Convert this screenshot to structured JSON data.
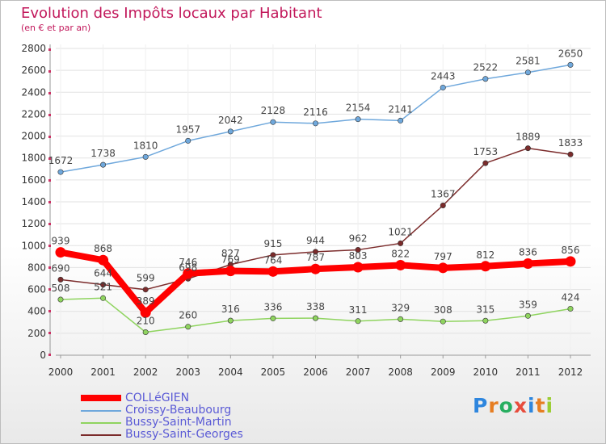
{
  "header": {
    "title": "Evolution des Impôts locaux par Habitant",
    "subtitle": "(en € et par an)"
  },
  "chart_data": {
    "type": "line",
    "title": "Evolution des Impôts locaux par Habitant",
    "subtitle": "(en € et par an)",
    "x": [
      "2000",
      "2001",
      "2002",
      "2003",
      "2004",
      "2005",
      "2006",
      "2007",
      "2008",
      "2009",
      "2010",
      "2011",
      "2012"
    ],
    "ylim": [
      0,
      2800
    ],
    "yticks": [
      0,
      200,
      400,
      600,
      800,
      1000,
      1200,
      1400,
      1600,
      1800,
      2000,
      2200,
      2400,
      2600,
      2800
    ],
    "grid": true,
    "legend_position": "bottom-left",
    "series": [
      {
        "name": "COLLéGIEN",
        "color": "#ff0000",
        "values": [
          939,
          868,
          389,
          746,
          769,
          764,
          787,
          803,
          822,
          797,
          812,
          836,
          856
        ]
      },
      {
        "name": "Croissy-Beaubourg",
        "color": "#6fa8dc",
        "values": [
          1672,
          1738,
          1810,
          1957,
          2042,
          2128,
          2116,
          2154,
          2141,
          2443,
          2522,
          2581,
          2650
        ]
      },
      {
        "name": "Bussy-Saint-Martin",
        "color": "#8fd45f",
        "values": [
          508,
          521,
          210,
          260,
          316,
          336,
          338,
          311,
          329,
          308,
          315,
          359,
          424
        ]
      },
      {
        "name": "Bussy-Saint-Georges",
        "color": "#7b2b2b",
        "values": [
          690,
          644,
          599,
          698,
          827,
          915,
          944,
          962,
          1021,
          1367,
          1753,
          1889,
          1833
        ]
      }
    ]
  },
  "logo": {
    "letters": [
      "P",
      "r",
      "o",
      "x",
      "i",
      "t",
      "i"
    ],
    "colors": [
      "#2e86de",
      "#e67e22",
      "#27ae60",
      "#e74c3c",
      "#2e86de",
      "#e67e22",
      "#9acd32"
    ]
  }
}
